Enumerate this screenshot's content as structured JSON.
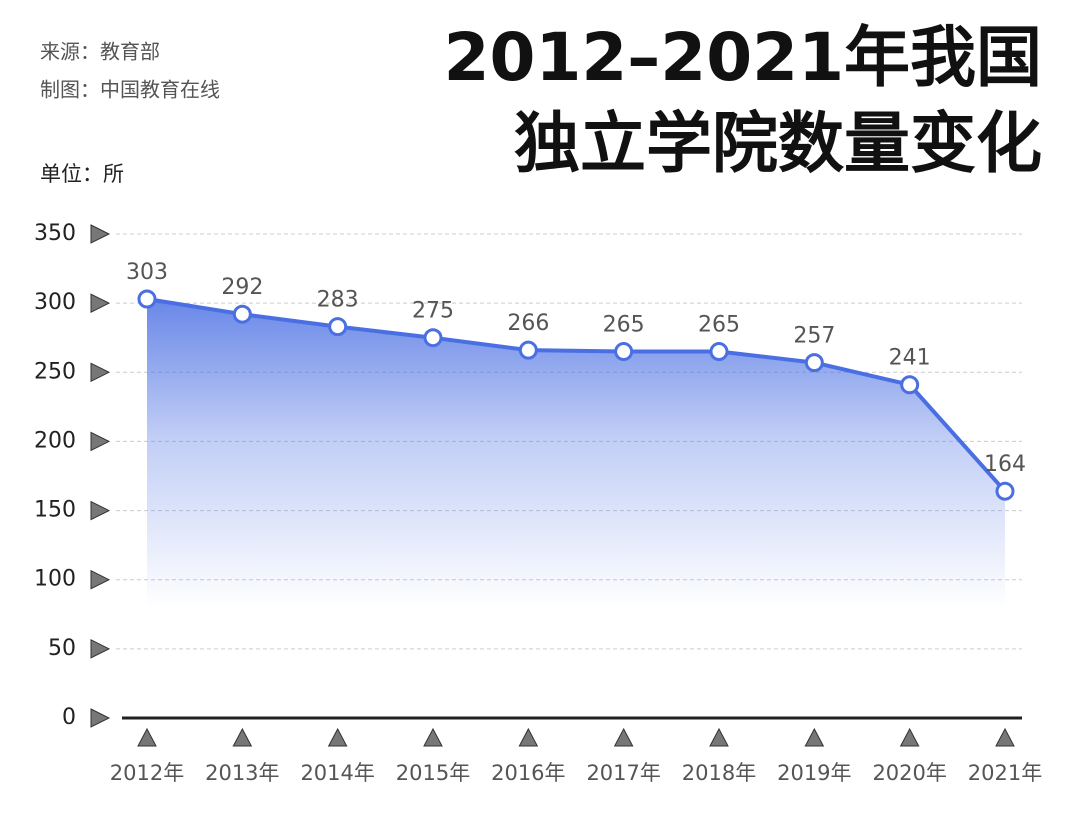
{
  "source": "来源：教育部",
  "credit": "制图：中国教育在线",
  "unit": "单位：所",
  "chart_data": {
    "type": "area-line",
    "title": [
      "2012–2021年我国",
      "独立学院数量变化"
    ],
    "categories": [
      "2012年",
      "2013年",
      "2014年",
      "2015年",
      "2016年",
      "2017年",
      "2018年",
      "2019年",
      "2020年",
      "2021年"
    ],
    "values": [
      303,
      292,
      283,
      275,
      266,
      265,
      265,
      257,
      241,
      164
    ],
    "color": "#4a6fe3",
    "ylim": [
      0,
      350
    ],
    "yticks": [
      0,
      50,
      100,
      150,
      200,
      250,
      300,
      350
    ],
    "grid": true
  }
}
